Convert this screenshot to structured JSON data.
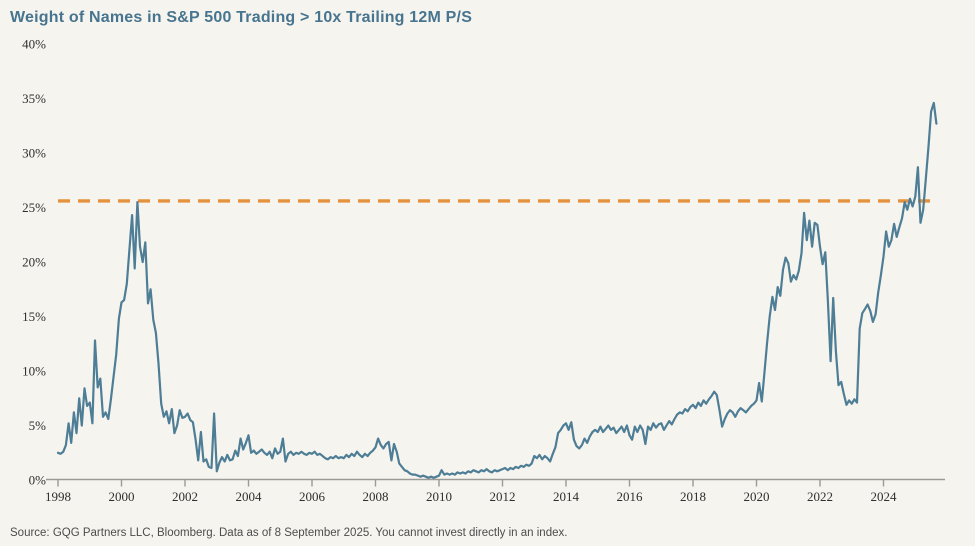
{
  "title": "Weight of Names in S&P 500 Trading > 10x Trailing 12M P/S",
  "source_note": "Source: GQG Partners LLC, Bloomberg. Data as of 8 September 2025. You cannot invest directly in an index.",
  "colors": {
    "background": "#f6f4ef",
    "title_text": "#47748e",
    "series_line": "#4e7d96",
    "reference_line": "#e5923e",
    "axis_line": "#9a9a96",
    "tick_text": "#2f2f2f",
    "source_text": "#4c4c4c"
  },
  "chart_data": {
    "type": "line",
    "title": "Weight of Names in S&P 500 Trading > 10x Trailing 12M P/S",
    "xlabel": "",
    "ylabel": "",
    "grid": false,
    "legend": false,
    "ylim": [
      0,
      40
    ],
    "xlim_years": [
      1998,
      2025.95
    ],
    "y_tick_labels": [
      "0%",
      "5%",
      "10%",
      "15%",
      "20%",
      "25%",
      "30%",
      "35%",
      "40%"
    ],
    "y_tick_values": [
      0,
      5,
      10,
      15,
      20,
      25,
      30,
      35,
      40
    ],
    "x_tick_labels": [
      "1998",
      "2000",
      "2002",
      "2004",
      "2006",
      "2008",
      "2010",
      "2012",
      "2014",
      "2016",
      "2018",
      "2020",
      "2022",
      "2024"
    ],
    "x_start_year": 1998,
    "x_interval": "monthly",
    "x_end": "2025-09",
    "reference_line": {
      "value": 25.6,
      "style": "dashed"
    },
    "series": [
      {
        "name": "Weight of names in S&P 500 trading > 10x trailing 12M P/S (%)",
        "values": [
          2.5,
          2.4,
          2.6,
          3.2,
          5.2,
          3.4,
          6.2,
          4.3,
          7.5,
          5.0,
          8.4,
          6.8,
          7.1,
          5.2,
          12.8,
          8.5,
          9.3,
          5.8,
          6.2,
          5.6,
          7.4,
          9.5,
          11.5,
          14.8,
          16.3,
          16.5,
          18.0,
          21.1,
          24.3,
          19.4,
          25.5,
          21.4,
          20.0,
          21.8,
          16.2,
          17.5,
          14.7,
          13.5,
          10.7,
          7.0,
          5.8,
          6.3,
          5.2,
          6.5,
          4.3,
          5.0,
          6.4,
          5.7,
          5.8,
          6.1,
          5.5,
          5.3,
          3.7,
          1.8,
          4.4,
          1.7,
          1.9,
          1.2,
          1.1,
          6.1,
          0.8,
          1.6,
          2.1,
          1.7,
          2.3,
          1.8,
          1.9,
          2.7,
          2.2,
          3.8,
          2.8,
          3.4,
          4.1,
          2.5,
          2.7,
          2.4,
          2.6,
          2.8,
          2.5,
          2.3,
          2.6,
          2.0,
          2.9,
          2.4,
          2.6,
          3.8,
          1.7,
          2.4,
          2.6,
          2.3,
          2.5,
          2.4,
          2.6,
          2.4,
          2.3,
          2.5,
          2.4,
          2.6,
          2.3,
          2.4,
          2.2,
          2.0,
          1.9,
          2.1,
          2.0,
          2.2,
          2.0,
          2.1,
          2.0,
          2.3,
          2.1,
          2.4,
          2.2,
          2.6,
          2.3,
          2.1,
          2.4,
          2.2,
          2.5,
          2.7,
          3.0,
          3.8,
          3.2,
          2.9,
          3.3,
          3.5,
          1.8,
          3.3,
          2.6,
          1.5,
          1.2,
          0.9,
          0.8,
          0.6,
          0.5,
          0.5,
          0.4,
          0.3,
          0.4,
          0.3,
          0.2,
          0.3,
          0.2,
          0.3,
          0.4,
          0.9,
          0.5,
          0.6,
          0.5,
          0.6,
          0.5,
          0.7,
          0.6,
          0.7,
          0.6,
          0.8,
          0.7,
          0.9,
          0.8,
          0.7,
          0.9,
          0.8,
          1.0,
          0.8,
          0.7,
          0.9,
          0.8,
          0.9,
          1.0,
          1.1,
          0.9,
          1.1,
          1.0,
          1.2,
          1.1,
          1.3,
          1.2,
          1.4,
          1.3,
          1.5,
          2.2,
          2.0,
          2.3,
          1.9,
          2.2,
          2.0,
          1.7,
          2.4,
          3.0,
          4.3,
          4.6,
          5.0,
          5.2,
          4.6,
          5.3,
          3.7,
          3.1,
          2.9,
          3.2,
          3.8,
          3.4,
          4.0,
          4.4,
          4.6,
          4.4,
          4.9,
          4.4,
          4.7,
          5.0,
          4.6,
          4.8,
          4.3,
          4.6,
          4.9,
          4.4,
          5.0,
          4.1,
          3.7,
          4.9,
          4.4,
          5.0,
          4.6,
          3.3,
          4.9,
          4.6,
          5.2,
          4.8,
          5.1,
          5.2,
          4.6,
          5.0,
          5.4,
          5.1,
          5.6,
          6.0,
          6.2,
          6.1,
          6.5,
          6.3,
          6.7,
          6.9,
          6.6,
          7.1,
          6.8,
          7.3,
          7.0,
          7.4,
          7.7,
          8.1,
          7.8,
          6.4,
          4.9,
          5.6,
          6.1,
          6.4,
          6.2,
          5.8,
          6.3,
          6.6,
          6.4,
          6.2,
          6.5,
          6.8,
          7.0,
          7.3,
          8.9,
          7.2,
          9.8,
          12.6,
          15.0,
          16.8,
          15.6,
          17.7,
          16.9,
          19.3,
          20.4,
          19.9,
          18.2,
          18.8,
          18.4,
          19.2,
          20.8,
          24.5,
          22.0,
          23.8,
          21.4,
          23.6,
          23.4,
          21.4,
          19.8,
          20.9,
          16.4,
          10.9,
          16.7,
          11.8,
          8.7,
          9.0,
          7.9,
          6.9,
          7.3,
          7.0,
          7.4,
          7.1,
          13.9,
          15.3,
          15.7,
          16.1,
          15.5,
          14.5,
          15.2,
          17.2,
          18.8,
          20.5,
          22.8,
          21.4,
          22.0,
          23.5,
          22.3,
          23.2,
          24.0,
          25.5,
          24.8,
          25.8,
          25.1,
          26.0,
          28.7,
          23.6,
          24.8,
          27.6,
          30.6,
          33.8,
          34.6,
          32.7
        ]
      }
    ]
  }
}
